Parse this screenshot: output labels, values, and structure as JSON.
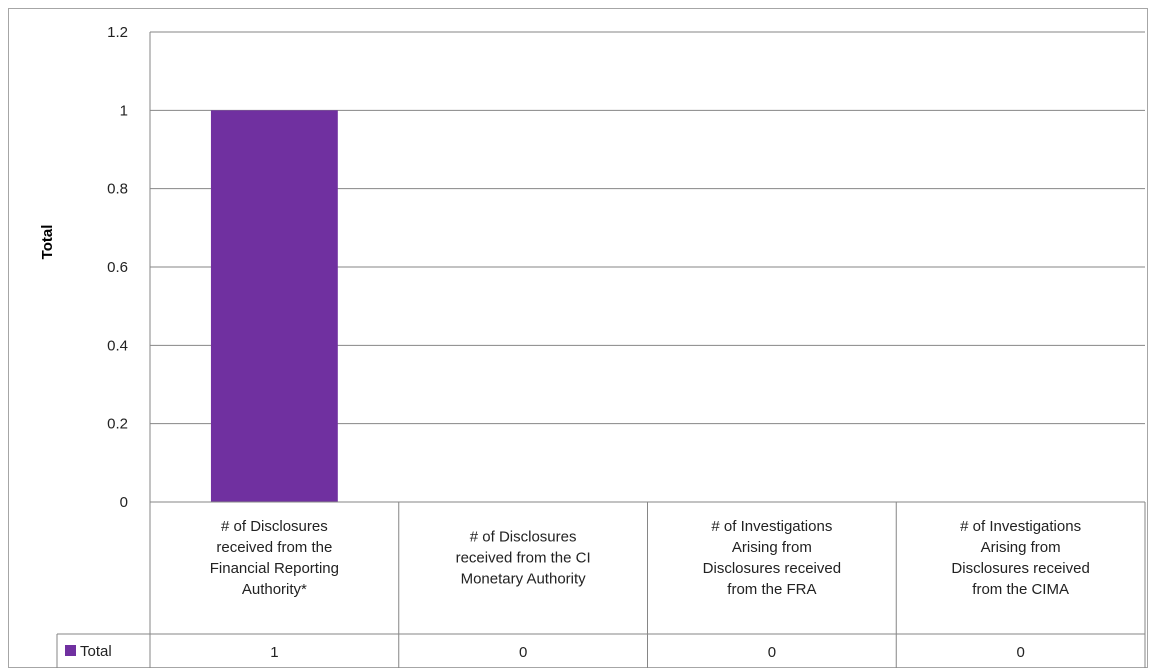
{
  "chart_data": {
    "type": "bar",
    "title": "",
    "xlabel": "",
    "ylabel": "Total",
    "ylim": [
      0,
      1.2
    ],
    "yticks": [
      "0",
      "0.2",
      "0.4",
      "0.6",
      "0.8",
      "1",
      "1.2"
    ],
    "grid": true,
    "legend_position": "data-table",
    "categories": [
      [
        "# of Disclosures",
        "received from the",
        "Financial Reporting",
        "Authority*"
      ],
      [
        "# of Disclosures",
        "received from the CI",
        "Monetary Authority"
      ],
      [
        "# of Investigations",
        "Arising from",
        "Disclosures received",
        "from the FRA"
      ],
      [
        "# of Investigations",
        "Arising from",
        "Disclosures received",
        "from the CIMA"
      ]
    ],
    "series": [
      {
        "name": "Total",
        "color": "#7030a0",
        "values": [
          1,
          0,
          0,
          0
        ],
        "value_labels": [
          "1",
          "0",
          "0",
          "0"
        ]
      }
    ]
  }
}
